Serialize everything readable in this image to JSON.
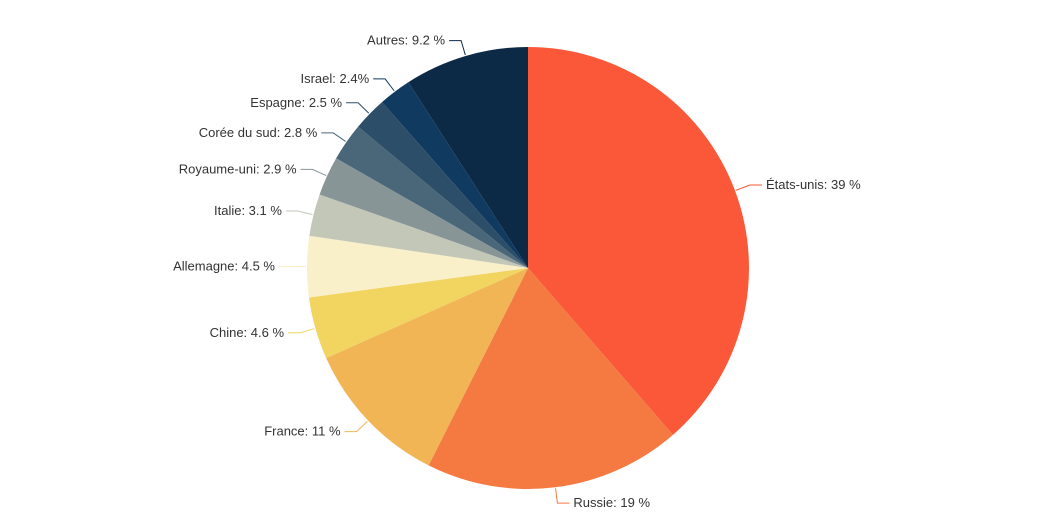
{
  "chart_data": {
    "type": "pie",
    "title": "",
    "start_angle_deg": 0,
    "direction": "clockwise",
    "slices": [
      {
        "label": "États-unis",
        "value": 39,
        "display": "39 %",
        "color": "#fa5838"
      },
      {
        "label": "Russie",
        "value": 19,
        "display": "19 %",
        "color": "#f47a42"
      },
      {
        "label": "France",
        "value": 11,
        "display": "11 %",
        "color": "#f1b556"
      },
      {
        "label": "Chine",
        "value": 4.6,
        "display": "4.6 %",
        "color": "#f2d460"
      },
      {
        "label": "Allemagne",
        "value": 4.5,
        "display": "4.5 %",
        "color": "#f9efc8"
      },
      {
        "label": "Italie",
        "value": 3.1,
        "display": "3.1 %",
        "color": "#c3c7b8"
      },
      {
        "label": "Royaume-uni",
        "value": 2.9,
        "display": "2.9 %",
        "color": "#879597"
      },
      {
        "label": "Corée du sud",
        "value": 2.8,
        "display": "2.8 %",
        "color": "#4a677a"
      },
      {
        "label": "Espagne",
        "value": 2.5,
        "display": "2.5 %",
        "color": "#2d4e68"
      },
      {
        "label": "Israel",
        "value": 2.4,
        "display": "2.4%",
        "color": "#113a60"
      },
      {
        "label": "Autres",
        "value": 9.2,
        "display": "9.2 %",
        "color": "#0c2946"
      }
    ]
  }
}
